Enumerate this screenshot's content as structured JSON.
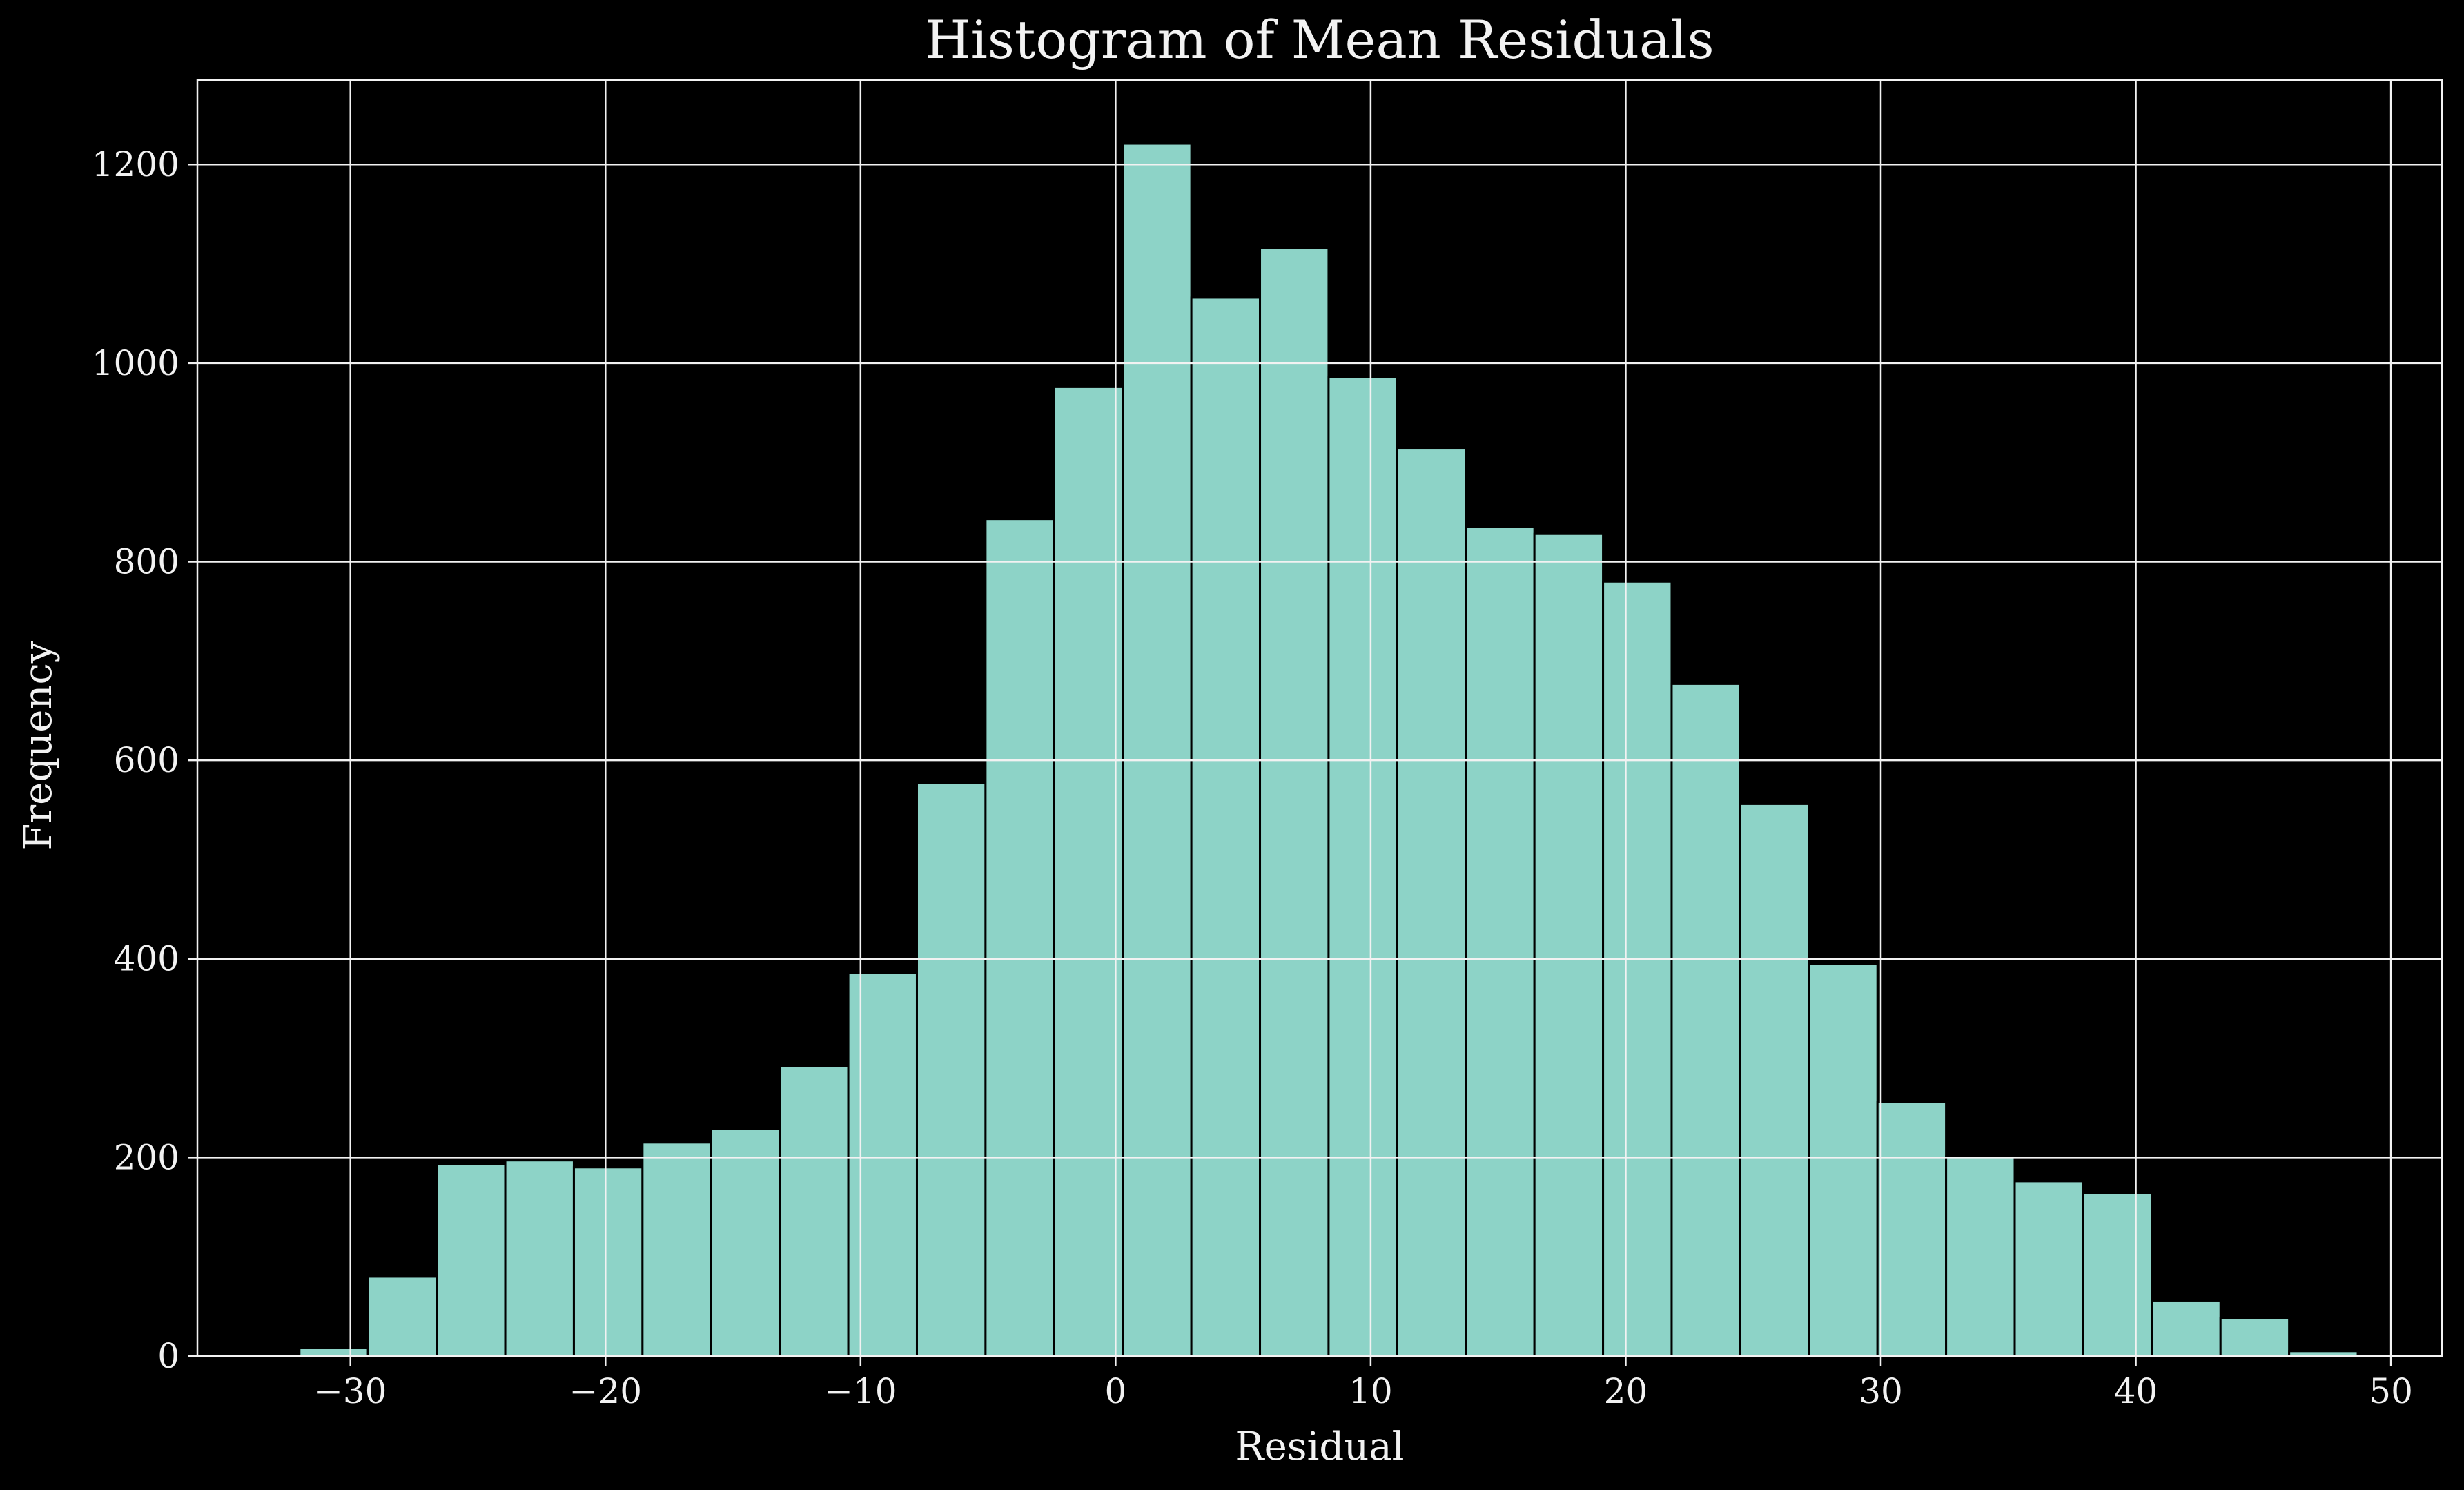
{
  "chart_data": {
    "type": "bar",
    "title": "Histogram of Mean Residuals",
    "xlabel": "Residual",
    "ylabel": "Frequency",
    "xlim": [
      -36,
      52
    ],
    "ylim": [
      0,
      1285
    ],
    "xticks": [
      -30,
      -20,
      -10,
      0,
      10,
      20,
      30,
      40,
      50
    ],
    "xtick_labels": [
      "−30",
      "−20",
      "−10",
      "0",
      "10",
      "20",
      "30",
      "40",
      "50"
    ],
    "yticks": [
      0,
      200,
      400,
      600,
      800,
      1000,
      1200
    ],
    "ytick_labels": [
      "0",
      "200",
      "400",
      "600",
      "800",
      "1000",
      "1200"
    ],
    "grid": true,
    "bar_color": "#8dd3c7",
    "edge_color": "#000000",
    "background": "#000000",
    "foreground": "#f2f2f2",
    "bin_start": -32.0,
    "bin_width": 2.69,
    "values": [
      8,
      80,
      193,
      197,
      190,
      215,
      229,
      292,
      386,
      577,
      843,
      976,
      1221,
      1066,
      1116,
      986,
      914,
      835,
      828,
      780,
      677,
      556,
      395,
      256,
      201,
      176,
      164,
      56,
      38,
      5
    ]
  }
}
